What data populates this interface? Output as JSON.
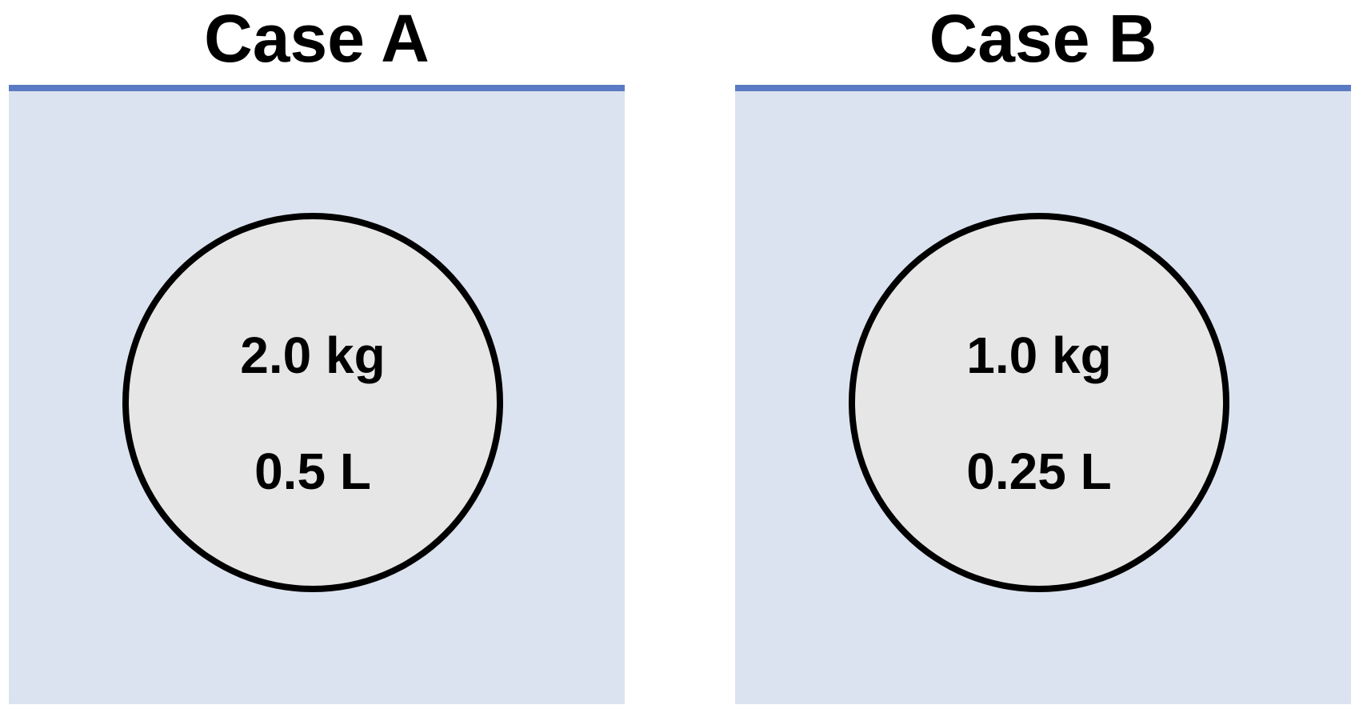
{
  "colors": {
    "surface_line": "#5a7bc4",
    "fluid": "#dce3f0",
    "object_fill": "#e6e6e6",
    "object_border": "#000000",
    "text": "#000000"
  },
  "cases": [
    {
      "title": "Case A",
      "mass": "2.0 kg",
      "volume": "0.5 L"
    },
    {
      "title": "Case B",
      "mass": "1.0 kg",
      "volume": "0.25 L"
    }
  ]
}
